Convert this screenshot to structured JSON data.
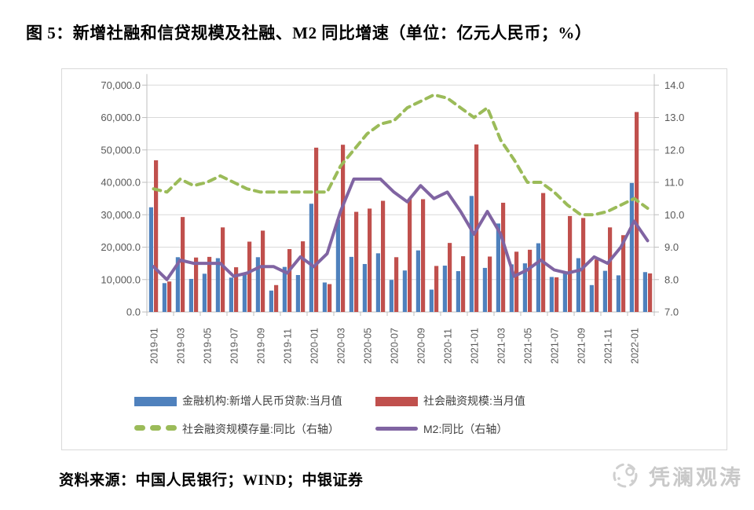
{
  "title": "图 5：新增社融和信贷规模及社融、M2 同比增速（单位：亿元人民币；%）",
  "source": "资料来源：中国人民银行；WIND；中银证券",
  "watermark": "凭澜观涛",
  "chart_data": {
    "type": "bar+line combo",
    "title": "新增社融和信贷规模及社融、M2 同比增速",
    "unit_note": "亿元人民币；%",
    "grid": "horizontal only",
    "legend_position": "bottom",
    "categories": [
      "2019-01",
      "2019-02",
      "2019-03",
      "2019-04",
      "2019-05",
      "2019-06",
      "2019-07",
      "2019-08",
      "2019-09",
      "2019-10",
      "2019-11",
      "2019-12",
      "2020-01",
      "2020-02",
      "2020-03",
      "2020-04",
      "2020-05",
      "2020-06",
      "2020-07",
      "2020-08",
      "2020-09",
      "2020-10",
      "2020-11",
      "2020-12",
      "2021-01",
      "2021-02",
      "2021-03",
      "2021-04",
      "2021-05",
      "2021-06",
      "2021-07",
      "2021-08",
      "2021-09",
      "2021-10",
      "2021-11",
      "2021-12",
      "2022-01",
      "2022-02"
    ],
    "x_axis": {
      "tick_labels": [
        "2019-01",
        "2019-03",
        "2019-05",
        "2019-07",
        "2019-09",
        "2019-11",
        "2020-01",
        "2020-03",
        "2020-05",
        "2020-07",
        "2020-09",
        "2020-11",
        "2021-01",
        "2021-03",
        "2021-05",
        "2021-07",
        "2021-09",
        "2021-11",
        "2022-01"
      ]
    },
    "left_axis": {
      "min": 0,
      "max": 70000,
      "step": 10000,
      "tick_labels": [
        "70,000.0",
        "60,000.0",
        "50,000.0",
        "40,000.0",
        "30,000.0",
        "20,000.0",
        "10,000.0",
        "0.0"
      ]
    },
    "right_axis": {
      "min": 7.0,
      "max": 14.0,
      "step": 1.0,
      "tick_labels": [
        "14.0",
        "13.0",
        "12.0",
        "11.0",
        "10.0",
        "9.0",
        "8.0",
        "7.0"
      ]
    },
    "series": [
      {
        "name": "金融机构:新增人民币贷款:当月值",
        "type": "bar",
        "axis": "left",
        "color": "#4F81BD",
        "values": [
          32300,
          8900,
          16900,
          10200,
          11800,
          16600,
          10600,
          12100,
          16900,
          6600,
          13900,
          11400,
          33400,
          9100,
          28500,
          17000,
          14800,
          18100,
          9900,
          12800,
          19000,
          6900,
          14300,
          12600,
          35800,
          13600,
          27300,
          14700,
          15000,
          21200,
          10800,
          12200,
          16600,
          8300,
          12700,
          11300,
          39800,
          12300
        ]
      },
      {
        "name": "社会融资规模:当月值",
        "type": "bar",
        "axis": "left",
        "color": "#C0504D",
        "values": [
          46800,
          9400,
          29300,
          16800,
          17000,
          26100,
          13800,
          21700,
          25100,
          8300,
          19400,
          21800,
          50700,
          8600,
          51600,
          30900,
          31900,
          34300,
          16900,
          35000,
          34800,
          14200,
          21300,
          17200,
          51700,
          17100,
          33700,
          18600,
          19200,
          36700,
          10700,
          29600,
          29000,
          16200,
          26100,
          23700,
          61700,
          11900
        ]
      },
      {
        "name": "社会融资规模存量:同比（右轴）",
        "type": "line",
        "style": "dashed",
        "axis": "right",
        "color": "#9BBB59",
        "values": [
          10.8,
          10.7,
          11.1,
          10.9,
          11.0,
          11.2,
          11.0,
          10.8,
          10.7,
          10.7,
          10.7,
          10.7,
          10.7,
          10.7,
          11.5,
          12.0,
          12.5,
          12.8,
          12.9,
          13.3,
          13.5,
          13.7,
          13.6,
          13.3,
          13.0,
          13.3,
          12.3,
          11.7,
          11.0,
          11.0,
          10.7,
          10.3,
          10.0,
          10.0,
          10.1,
          10.3,
          10.5,
          10.2
        ]
      },
      {
        "name": "M2:同比（右轴）",
        "type": "line",
        "style": "solid",
        "axis": "right",
        "color": "#8064A2",
        "values": [
          8.4,
          8.0,
          8.6,
          8.5,
          8.5,
          8.5,
          8.1,
          8.2,
          8.4,
          8.4,
          8.2,
          8.7,
          8.4,
          8.8,
          10.1,
          11.1,
          11.1,
          11.1,
          10.7,
          10.4,
          10.9,
          10.5,
          10.7,
          10.1,
          9.4,
          10.1,
          9.4,
          8.1,
          8.3,
          8.6,
          8.3,
          8.2,
          8.3,
          8.7,
          8.5,
          9.0,
          9.8,
          9.2
        ]
      }
    ],
    "colors": {
      "bar1": "#4F81BD",
      "bar2": "#C0504D",
      "line1": "#9BBB59",
      "line2": "#8064A2",
      "grid": "#d9d9d9",
      "axis_text": "#595959"
    }
  }
}
